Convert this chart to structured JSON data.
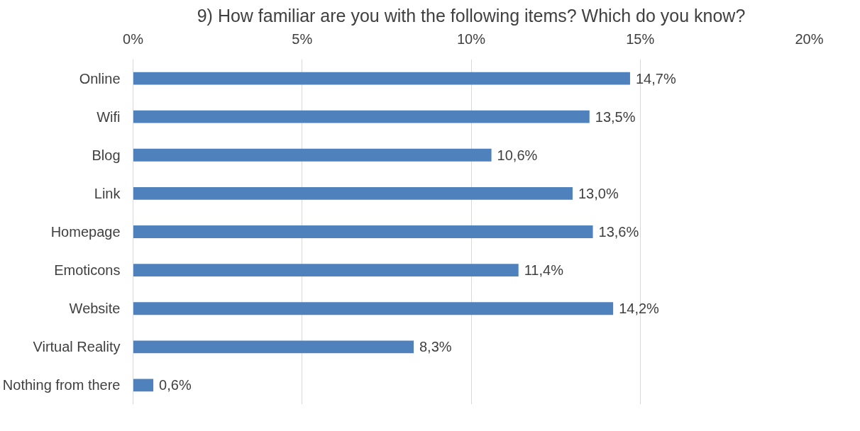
{
  "chart_data": {
    "type": "bar",
    "orientation": "horizontal",
    "title": "9) How familiar are you with the following items? Which do you know?",
    "categories": [
      "Online",
      "Wifi",
      "Blog",
      "Link",
      "Homepage",
      "Emoticons",
      "Website",
      "Virtual Reality",
      "Nothing from there"
    ],
    "values": [
      14.7,
      13.5,
      10.6,
      13.0,
      13.6,
      11.4,
      14.2,
      8.3,
      0.6
    ],
    "value_labels": [
      "14,7%",
      "13,5%",
      "10,6%",
      "13,0%",
      "13,6%",
      "11,4%",
      "14,2%",
      "8,3%",
      "0,6%"
    ],
    "color": "#4f81bd",
    "xlim": [
      0,
      20
    ],
    "xticks": [
      {
        "value": 0,
        "label": "0%"
      },
      {
        "value": 5,
        "label": "5%"
      },
      {
        "value": 10,
        "label": "10%"
      },
      {
        "value": 15,
        "label": "15%"
      },
      {
        "value": 20,
        "label": "20%"
      }
    ],
    "grid": "x"
  }
}
